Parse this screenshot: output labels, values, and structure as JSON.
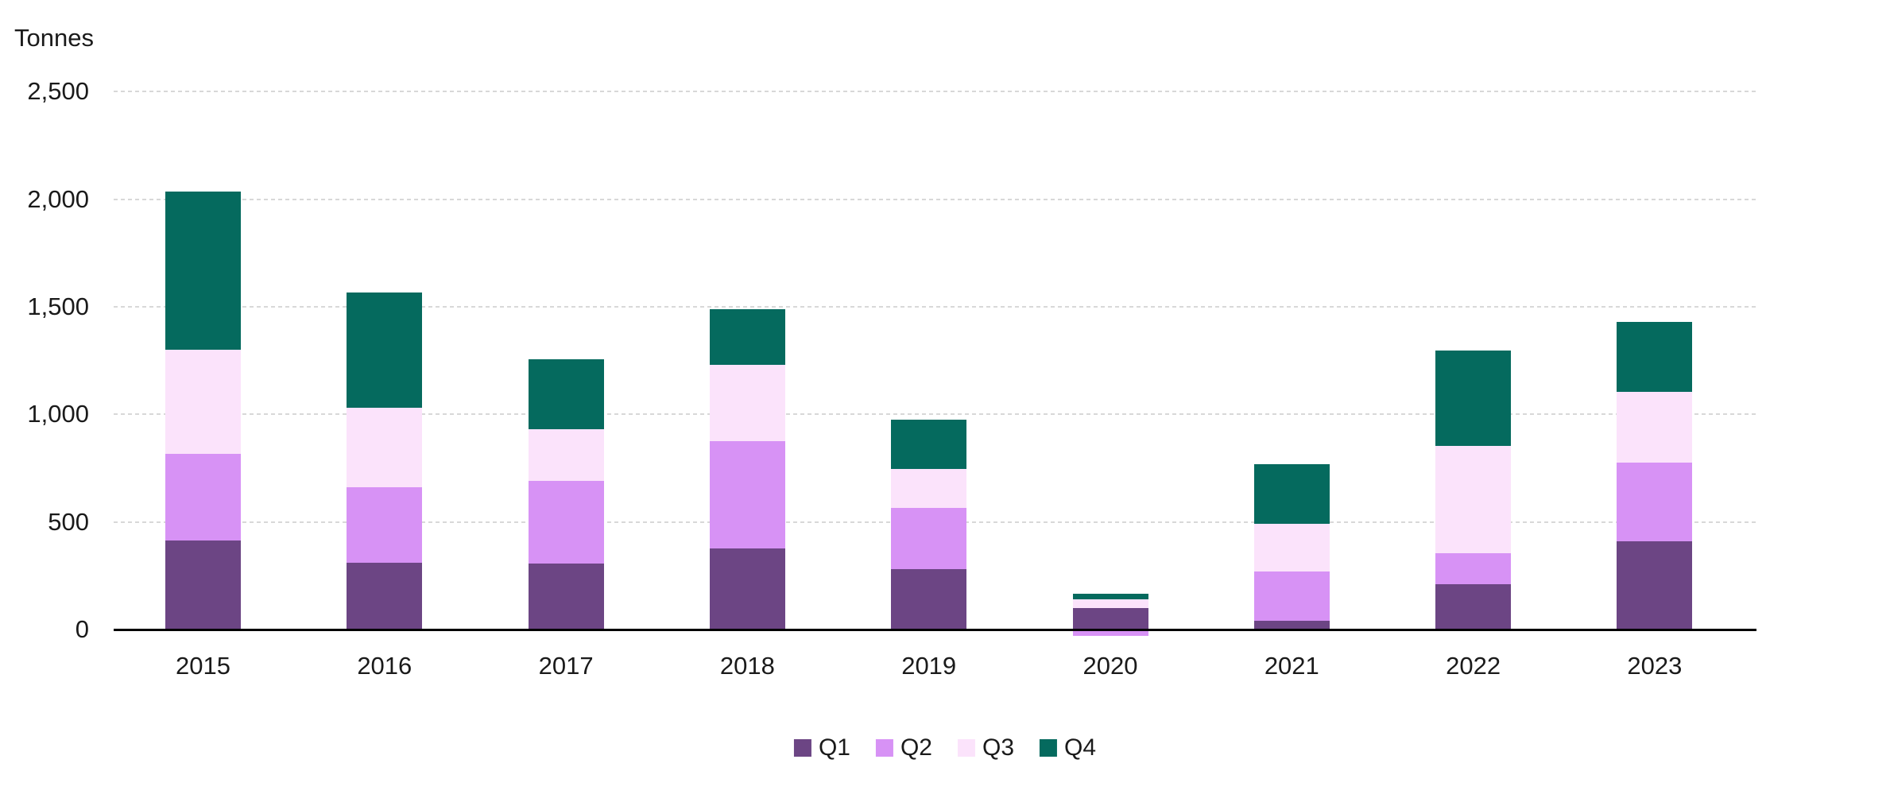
{
  "chart_data": {
    "type": "bar",
    "stacked": true,
    "axis_title": "Tonnes",
    "categories": [
      "2015",
      "2016",
      "2017",
      "2018",
      "2019",
      "2020",
      "2021",
      "2022",
      "2023"
    ],
    "series": [
      {
        "name": "Q1",
        "color": "#6C4584",
        "values": [
          415,
          310,
          305,
          375,
          280,
          100,
          40,
          210,
          410
        ]
      },
      {
        "name": "Q2",
        "color": "#D792F5",
        "values": [
          400,
          350,
          385,
          500,
          285,
          -30,
          230,
          145,
          365
        ]
      },
      {
        "name": "Q3",
        "color": "#FBE3FB",
        "values": [
          485,
          370,
          240,
          355,
          180,
          40,
          220,
          500,
          330
        ]
      },
      {
        "name": "Q4",
        "color": "#056A5E",
        "values": [
          735,
          535,
          325,
          260,
          230,
          25,
          280,
          440,
          325
        ]
      }
    ],
    "totals": [
      2035,
      1565,
      1255,
      1490,
      975,
      165,
      770,
      1295,
      1430
    ],
    "y_axis": {
      "min": 0,
      "max": 2500,
      "tick_interval": 500,
      "tick_labels": [
        "0",
        "500",
        "1,000",
        "1,500",
        "2,000",
        "2,500"
      ]
    },
    "x_axis": {
      "label": "",
      "tick_labels": [
        "2015",
        "2016",
        "2017",
        "2018",
        "2019",
        "2020",
        "2021",
        "2022",
        "2023"
      ]
    },
    "legend": {
      "position": "bottom",
      "entries": [
        "Q1",
        "Q2",
        "Q3",
        "Q4"
      ]
    },
    "grid": true,
    "gridline_style": "dashed"
  },
  "styles": {
    "background": "#FFFFFF",
    "text_color": "#1A1A1A",
    "gridline_color": "#D8D8D8",
    "axis_line_color": "#000000"
  }
}
